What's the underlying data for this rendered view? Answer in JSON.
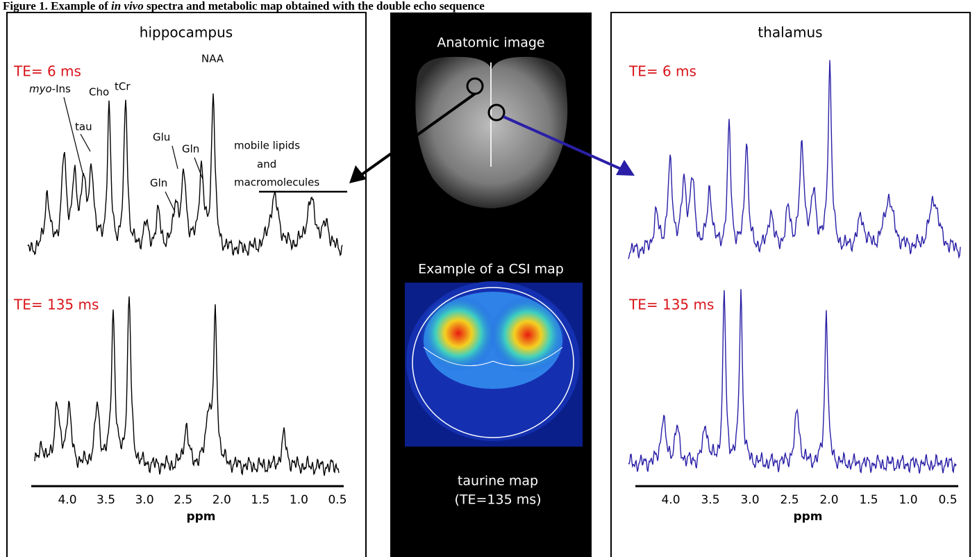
{
  "caption": {
    "prefix": "Figure 1. Example of ",
    "italic": "in vivo",
    "suffix": " spectra and metabolic map obtained with the double echo sequence"
  },
  "left_panel": {
    "region": "hippocampus",
    "te_short": "TE= 6 ms",
    "te_long": "TE= 135 ms",
    "peak_labels": {
      "myo_ins": {
        "italic": "myo",
        "text": "-Ins"
      },
      "tau": "tau",
      "cho": "Cho",
      "tcr": "tCr",
      "glu": "Glu",
      "gln_low": "Gln",
      "gln_high": "Gln",
      "naa": "NAA",
      "lipids": [
        "mobile lipids",
        "and",
        "macromolecules"
      ]
    },
    "axis": {
      "ticks": [
        "4.0",
        "3.5",
        "3.0",
        "2.5",
        "2.0",
        "1.5",
        "1.0",
        "0.5"
      ],
      "label": "ppm"
    }
  },
  "center_panel": {
    "anatomic_title": "Anatomic image",
    "csi_title": "Example of a CSI map",
    "map_caption": [
      "taurine map",
      "(TE=135 ms)"
    ]
  },
  "right_panel": {
    "region": "thalamus",
    "te_short": "TE= 6 ms",
    "te_long": "TE= 135 ms",
    "axis": {
      "ticks": [
        "4.0",
        "3.5",
        "3.0",
        "2.5",
        "2.0",
        "1.5",
        "1.0",
        "0.5"
      ],
      "label": "ppm"
    }
  }
}
